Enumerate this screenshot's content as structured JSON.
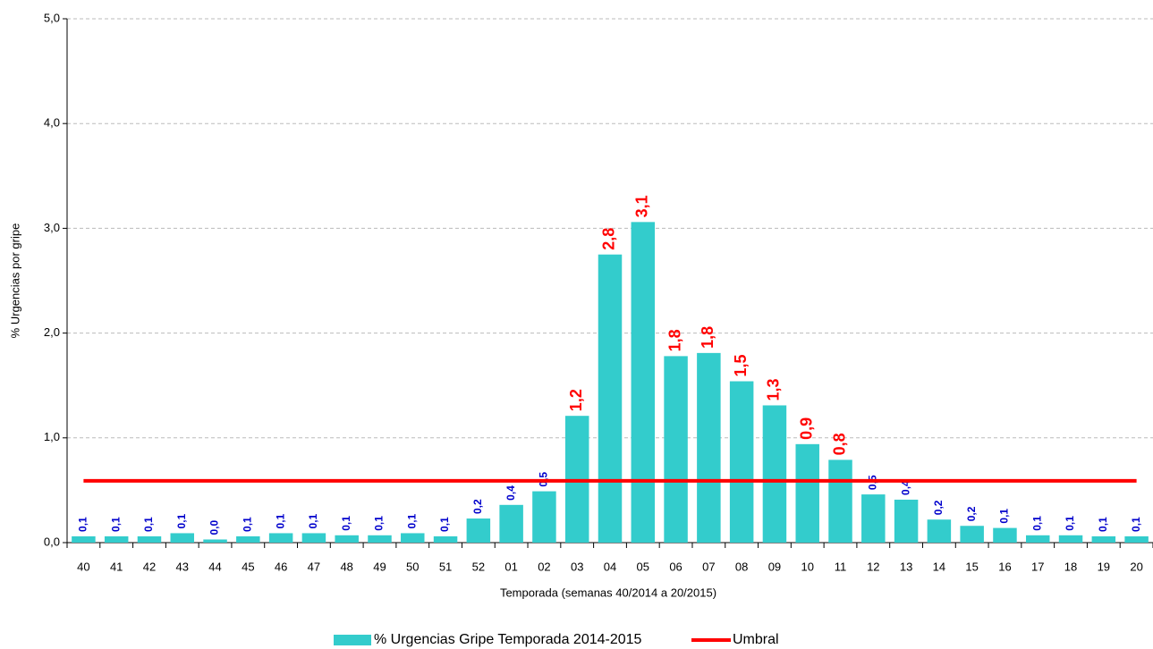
{
  "chart_data": {
    "type": "bar",
    "xlabel": "Temporada (semanas 40/2014 a 20/2015)",
    "ylabel": "% Urgencias por gripe",
    "categories": [
      "40",
      "41",
      "42",
      "43",
      "44",
      "45",
      "46",
      "47",
      "48",
      "49",
      "50",
      "51",
      "52",
      "01",
      "02",
      "03",
      "04",
      "05",
      "06",
      "07",
      "08",
      "09",
      "10",
      "11",
      "12",
      "13",
      "14",
      "15",
      "16",
      "17",
      "18",
      "19",
      "20"
    ],
    "series": [
      {
        "name": "% Urgencias Gripe Temporada 2014-2015",
        "color": "#33cccc",
        "type": "bar",
        "values": [
          0.06,
          0.06,
          0.06,
          0.09,
          0.03,
          0.06,
          0.09,
          0.09,
          0.07,
          0.07,
          0.09,
          0.06,
          0.23,
          0.36,
          0.49,
          1.21,
          2.75,
          3.06,
          1.78,
          1.81,
          1.54,
          1.31,
          0.94,
          0.79,
          0.46,
          0.41,
          0.22,
          0.16,
          0.14,
          0.07,
          0.07,
          0.06,
          0.06
        ],
        "value_labels": [
          "0,1",
          "0,1",
          "0,1",
          "0,1",
          "0,0",
          "0,1",
          "0,1",
          "0,1",
          "0,1",
          "0,1",
          "0,1",
          "0,1",
          "0,2",
          "0,4",
          "0,5",
          "1,2",
          "2,8",
          "3,1",
          "1,8",
          "1,8",
          "1,5",
          "1,3",
          "0,9",
          "0,8",
          "0,5",
          "0,4",
          "0,2",
          "0,2",
          "0,1",
          "0,1",
          "0,1",
          "0,1",
          "0,1"
        ]
      },
      {
        "name": "Umbral",
        "color": "#ff0000",
        "type": "line",
        "values": [
          0.59,
          0.59,
          0.59,
          0.59,
          0.59,
          0.59,
          0.59,
          0.59,
          0.59,
          0.59,
          0.59,
          0.59,
          0.59,
          0.59,
          0.59,
          0.59,
          0.59,
          0.59,
          0.59,
          0.59,
          0.59,
          0.59,
          0.59,
          0.59,
          0.59,
          0.59,
          0.59,
          0.59,
          0.59,
          0.59,
          0.59,
          0.59,
          0.59
        ]
      }
    ],
    "ylim": [
      0,
      5
    ],
    "yticks": [
      {
        "value": 0,
        "label": "0,0"
      },
      {
        "value": 1,
        "label": "1,0"
      },
      {
        "value": 2,
        "label": "2,0"
      },
      {
        "value": 3,
        "label": "3,0"
      },
      {
        "value": 4,
        "label": "4,0"
      },
      {
        "value": 5,
        "label": "5,0"
      }
    ],
    "grid": true,
    "legend": "bottom"
  }
}
